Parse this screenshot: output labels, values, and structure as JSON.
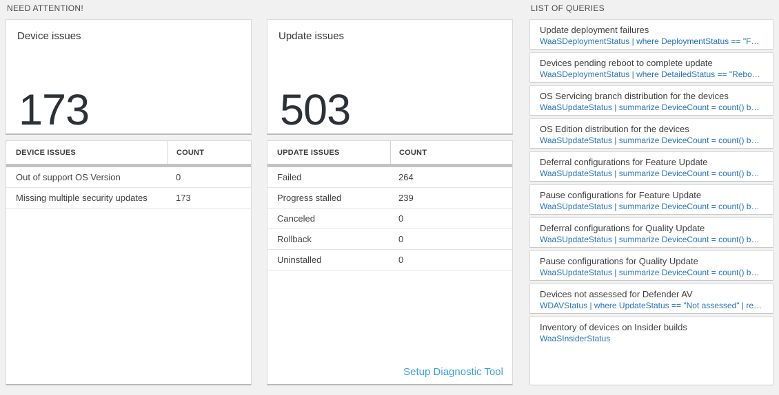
{
  "sections": {
    "need_attention_title": "NEED ATTENTION!",
    "queries_title": "LIST OF QUERIES"
  },
  "device_card": {
    "title": "Device issues",
    "count": "173"
  },
  "device_table": {
    "headers": [
      "DEVICE ISSUES",
      "COUNT"
    ],
    "rows": [
      {
        "label": "Out of support OS Version",
        "count": "0"
      },
      {
        "label": "Missing multiple security updates",
        "count": "173"
      }
    ]
  },
  "update_card": {
    "title": "Update issues",
    "count": "503"
  },
  "update_table": {
    "headers": [
      "UPDATE ISSUES",
      "COUNT"
    ],
    "rows": [
      {
        "label": "Failed",
        "count": "264"
      },
      {
        "label": "Progress stalled",
        "count": "239"
      },
      {
        "label": "Canceled",
        "count": "0"
      },
      {
        "label": "Rollback",
        "count": "0"
      },
      {
        "label": "Uninstalled",
        "count": "0"
      }
    ],
    "footer_link": "Setup Diagnostic Tool"
  },
  "queries_list": [
    {
      "title": "Update deployment failures",
      "query": "WaaSDeploymentStatus | where DeploymentStatus == \"Failed\" |..."
    },
    {
      "title": "Devices pending reboot to complete update",
      "query": "WaaSDeploymentStatus | where DetailedStatus == \"Reboot pend..."
    },
    {
      "title": "OS Servicing branch distribution for the devices",
      "query": "WaaSUpdateStatus | summarize DeviceCount = count() by OSSer..."
    },
    {
      "title": "OS Edition distribution for the devices",
      "query": "WaaSUpdateStatus | summarize DeviceCount = count() by OSEdit..."
    },
    {
      "title": "Deferral configurations for Feature Update",
      "query": "WaaSUpdateStatus | summarize DeviceCount = count() by Featur..."
    },
    {
      "title": "Pause configurations for Feature Update",
      "query": "WaaSUpdateStatus | summarize DeviceCount = count() by Featur..."
    },
    {
      "title": "Deferral configurations for Quality Update",
      "query": "WaaSUpdateStatus | summarize DeviceCount = count() by Qualit..."
    },
    {
      "title": "Pause configurations for Quality Update",
      "query": "WaaSUpdateStatus | summarize DeviceCount = count() by Qualit..."
    },
    {
      "title": "Devices not assessed for Defender AV",
      "query": "WDAVStatus | where UpdateStatus == \"Not assessed\" | render ta..."
    },
    {
      "title": "Inventory of devices on Insider builds",
      "query": "WaaSInsiderStatus"
    }
  ],
  "colors": {
    "page_background": "#f1f1f1",
    "card_background": "#ffffff",
    "query_link_blue": "#2373bd",
    "diagnostic_link_blue": "#3aa0dc",
    "big_number_color": "#2b3137",
    "scrollbar_track_gray": "#c3c3c3"
  }
}
